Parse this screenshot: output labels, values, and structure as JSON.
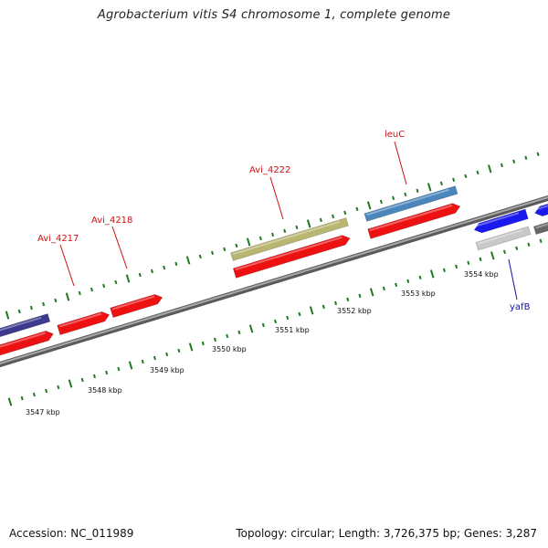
{
  "title": "Agrobacterium vitis S4 chromosome 1, complete genome",
  "accession": "Accession: NC_011989",
  "summary": "Topology: circular; Length: 3,726,375 bp; Genes: 3,287",
  "colors": {
    "backbone": "#8a8a8a",
    "tick": "#1e7a1e",
    "label_red": "#cc1111",
    "label_blue": "#1111aa",
    "cds_red": "#ee1111",
    "gene_navy": "#3b3a8e",
    "gene_olive": "#b8b670",
    "gene_steel": "#4a86bb",
    "gene_blue": "#1a1aee",
    "gene_grey": "#c8c8c8"
  },
  "scale": {
    "labels": [
      "3547 kbp",
      "3548 kbp",
      "3549 kbp",
      "3550 kbp",
      "3551 kbp",
      "3552 kbp",
      "3553 kbp",
      "3554 kbp"
    ]
  },
  "genes": [
    {
      "name": "Avi_4217",
      "color": "label_red"
    },
    {
      "name": "Avi_4218",
      "color": "label_red"
    },
    {
      "name": "Avi_4222",
      "color": "label_red"
    },
    {
      "name": "leuC",
      "color": "label_red"
    },
    {
      "name": "yafB",
      "color": "label_blue"
    }
  ]
}
